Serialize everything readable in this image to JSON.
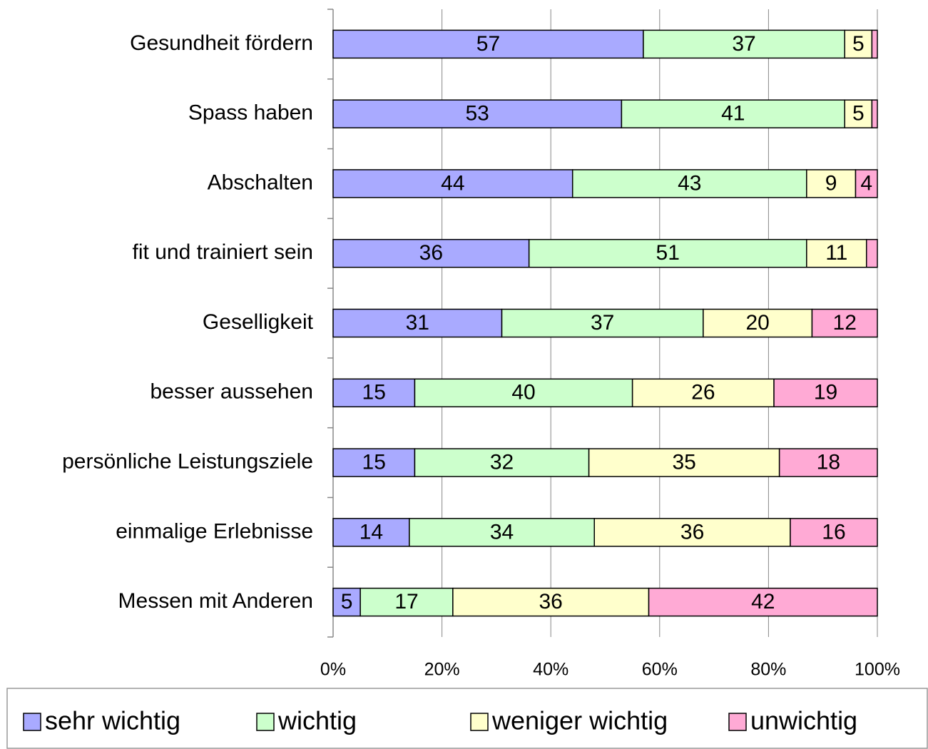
{
  "chart_data": {
    "type": "stacked_barh",
    "categories": [
      "Gesundheit fördern",
      "Spass haben",
      "Abschalten",
      "fit und trainiert sein",
      "Geselligkeit",
      "besser aussehen",
      "persönliche Leistungsziele",
      "einmalige Erlebnisse",
      "Messen mit Anderen"
    ],
    "series": [
      {
        "name": "sehr wichtig",
        "color": "#a9aaff",
        "values": [
          57,
          53,
          44,
          36,
          31,
          15,
          15,
          14,
          5
        ]
      },
      {
        "name": "wichtig",
        "color": "#ccffcc",
        "values": [
          37,
          41,
          43,
          51,
          37,
          40,
          32,
          34,
          17
        ]
      },
      {
        "name": "weniger wichtig",
        "color": "#ffffcc",
        "values": [
          5,
          5,
          9,
          11,
          20,
          26,
          35,
          36,
          36
        ]
      },
      {
        "name": "unwichtig",
        "color": "#ffaad5",
        "values": [
          1,
          1,
          4,
          2,
          12,
          19,
          18,
          16,
          42
        ]
      }
    ],
    "xlim": [
      0,
      100
    ],
    "xticks": [
      {
        "value": 0,
        "label": "0%"
      },
      {
        "value": 20,
        "label": "20%"
      },
      {
        "value": 40,
        "label": "40%"
      },
      {
        "value": 60,
        "label": "60%"
      },
      {
        "value": 80,
        "label": "80%"
      },
      {
        "value": 100,
        "label": "100%"
      }
    ],
    "grid": true,
    "legend": "bottom"
  }
}
